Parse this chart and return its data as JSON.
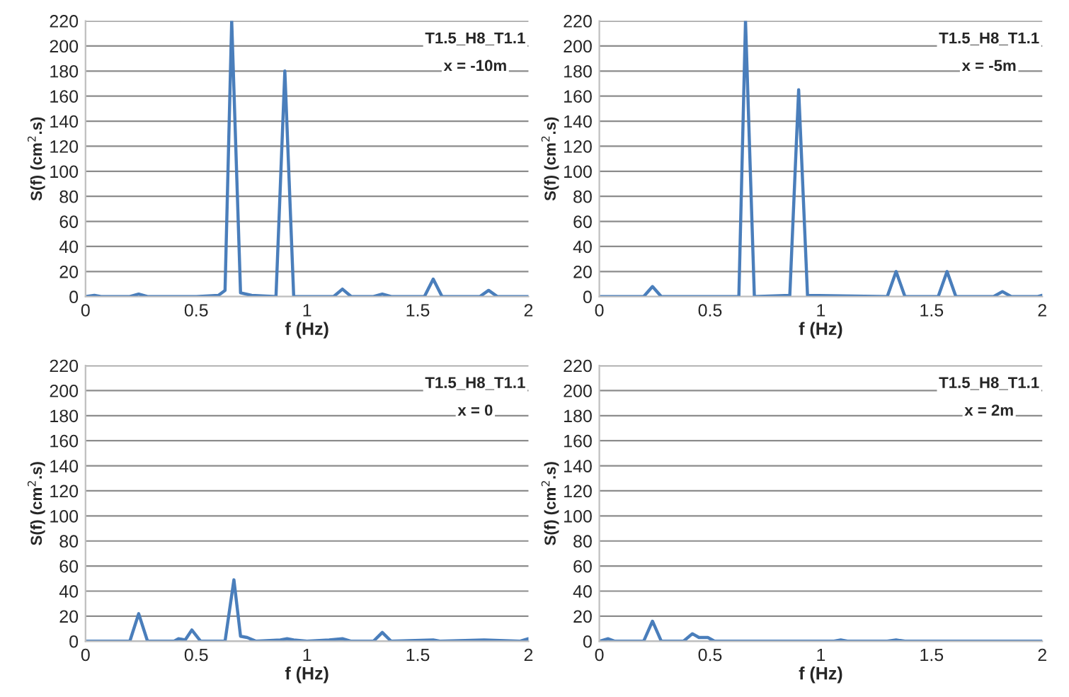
{
  "chart_data": [
    {
      "type": "line",
      "xlabel": "f (Hz)",
      "ylabel": "S(f) (cm$^{2}$.s)",
      "annotations": [
        "T1.5_H8_T1.1",
        "x = -10m"
      ],
      "xlim": [
        0,
        2
      ],
      "xticks": [
        0,
        0.5,
        1,
        1.5,
        2
      ],
      "ylim": [
        0,
        220
      ],
      "yticks": [
        0,
        20,
        40,
        60,
        80,
        100,
        120,
        140,
        160,
        180,
        200,
        220
      ],
      "grid": "y",
      "series": [
        {
          "color": "#4a7ebb",
          "x": [
            0,
            0.04,
            0.07,
            0.2,
            0.24,
            0.28,
            0.5,
            0.6,
            0.63,
            0.66,
            0.7,
            0.75,
            0.86,
            0.9,
            0.94,
            1.12,
            1.16,
            1.2,
            1.3,
            1.34,
            1.38,
            1.53,
            1.57,
            1.61,
            1.78,
            1.82,
            1.86,
            2
          ],
          "values": [
            0,
            1,
            0,
            0,
            2,
            0,
            0,
            1,
            5,
            220,
            3,
            1,
            0,
            180,
            0,
            0,
            6,
            0,
            0,
            2,
            0,
            0,
            14,
            0,
            0,
            5,
            0,
            0
          ]
        }
      ]
    },
    {
      "type": "line",
      "xlabel": "f (Hz)",
      "ylabel": "S(f) (cm$^{2}$.s)",
      "annotations": [
        "T1.5_H8_T1.1",
        "x = -5m"
      ],
      "xlim": [
        0,
        2
      ],
      "xticks": [
        0,
        0.5,
        1,
        1.5,
        2
      ],
      "ylim": [
        0,
        220
      ],
      "yticks": [
        0,
        20,
        40,
        60,
        80,
        100,
        120,
        140,
        160,
        180,
        200,
        220
      ],
      "grid": "y",
      "series": [
        {
          "color": "#4a7ebb",
          "x": [
            0,
            0.2,
            0.24,
            0.28,
            0.63,
            0.66,
            0.7,
            0.86,
            0.9,
            0.94,
            1.3,
            1.34,
            1.38,
            1.53,
            1.57,
            1.61,
            1.78,
            1.82,
            1.86,
            1.98,
            2
          ],
          "values": [
            0,
            0,
            8,
            0,
            0,
            220,
            0,
            1,
            165,
            1,
            0,
            20,
            0,
            0,
            20,
            0,
            0,
            4,
            0,
            0,
            1
          ]
        }
      ]
    },
    {
      "type": "line",
      "xlabel": "f (Hz)",
      "ylabel": "S(f) (cm$^{2}$.s)",
      "annotations": [
        "T1.5_H8_T1.1",
        "x = 0"
      ],
      "xlim": [
        0,
        2
      ],
      "xticks": [
        0,
        0.5,
        1,
        1.5,
        2
      ],
      "ylim": [
        0,
        220
      ],
      "yticks": [
        0,
        20,
        40,
        60,
        80,
        100,
        120,
        140,
        160,
        180,
        200,
        220
      ],
      "grid": "y",
      "series": [
        {
          "color": "#4a7ebb",
          "x": [
            0,
            0.2,
            0.24,
            0.28,
            0.4,
            0.42,
            0.45,
            0.48,
            0.52,
            0.63,
            0.67,
            0.7,
            0.73,
            0.77,
            0.88,
            0.91,
            0.94,
            1.0,
            1.1,
            1.16,
            1.2,
            1.3,
            1.34,
            1.38,
            1.57,
            1.6,
            1.8,
            1.96,
            2
          ],
          "values": [
            0,
            0,
            22,
            0,
            0,
            2,
            1,
            9,
            0,
            0,
            49,
            4,
            3,
            0,
            1,
            2,
            1,
            0,
            1,
            2,
            0,
            0,
            7,
            0,
            1,
            0,
            1,
            0,
            2
          ]
        }
      ]
    },
    {
      "type": "line",
      "xlabel": "f (Hz)",
      "ylabel": "S(f) (cm$^{2}$.s)",
      "annotations": [
        "T1.5_H8_T1.1",
        "x = 2m"
      ],
      "xlim": [
        0,
        2
      ],
      "xticks": [
        0,
        0.5,
        1,
        1.5,
        2
      ],
      "ylim": [
        0,
        220
      ],
      "yticks": [
        0,
        20,
        40,
        60,
        80,
        100,
        120,
        140,
        160,
        180,
        200,
        220
      ],
      "grid": "y",
      "series": [
        {
          "color": "#4a7ebb",
          "x": [
            0,
            0.04,
            0.07,
            0.2,
            0.24,
            0.28,
            0.38,
            0.42,
            0.45,
            0.49,
            0.52,
            1.06,
            1.09,
            1.12,
            1.3,
            1.34,
            1.38,
            2
          ],
          "values": [
            0,
            2,
            0,
            0,
            16,
            0,
            0,
            6,
            3,
            3,
            0,
            0,
            1,
            0,
            0,
            1,
            0,
            0
          ]
        }
      ]
    }
  ]
}
